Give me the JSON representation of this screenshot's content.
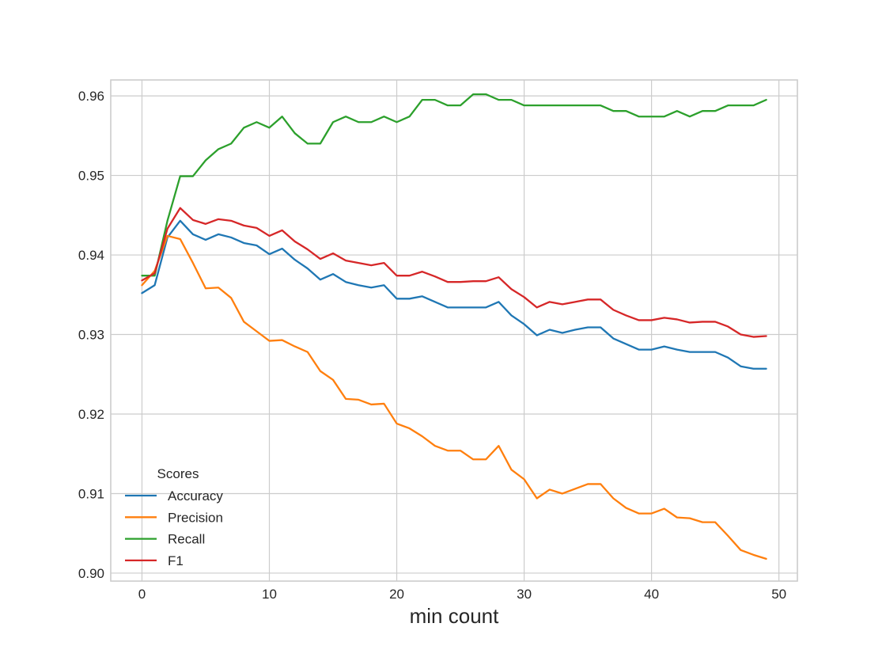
{
  "chart_data": {
    "type": "line",
    "title": "",
    "xlabel": "min count",
    "ylabel": "",
    "xlim": [
      -2.45,
      51.45
    ],
    "ylim": [
      0.899,
      0.962
    ],
    "xticks": [
      0,
      10,
      20,
      30,
      40,
      50
    ],
    "xtick_labels": [
      "0",
      "10",
      "20",
      "30",
      "40",
      "50"
    ],
    "yticks": [
      0.9,
      0.91,
      0.92,
      0.93,
      0.94,
      0.95,
      0.96
    ],
    "ytick_labels": [
      "0.90",
      "0.91",
      "0.92",
      "0.93",
      "0.94",
      "0.95",
      "0.96"
    ],
    "grid": true,
    "legend": {
      "title": "Scores",
      "placement": "lower-left"
    },
    "x": [
      0,
      1,
      2,
      3,
      4,
      5,
      6,
      7,
      8,
      9,
      10,
      11,
      12,
      13,
      14,
      15,
      16,
      17,
      18,
      19,
      20,
      21,
      22,
      23,
      24,
      25,
      26,
      27,
      28,
      29,
      30,
      31,
      32,
      33,
      34,
      35,
      36,
      37,
      38,
      39,
      40,
      41,
      42,
      43,
      44,
      45,
      46,
      47,
      48,
      49
    ],
    "series": [
      {
        "name": "Accuracy",
        "color": "#1f77b4",
        "values": [
          0.9352,
          0.9362,
          0.9422,
          0.9443,
          0.9426,
          0.9419,
          0.9426,
          0.9422,
          0.9415,
          0.9412,
          0.9401,
          0.9408,
          0.9394,
          0.9383,
          0.9369,
          0.9376,
          0.9366,
          0.9362,
          0.9359,
          0.9362,
          0.9345,
          0.9345,
          0.9348,
          0.9341,
          0.9334,
          0.9334,
          0.9334,
          0.9334,
          0.9341,
          0.9324,
          0.9313,
          0.9299,
          0.9306,
          0.9302,
          0.9306,
          0.9309,
          0.9309,
          0.9295,
          0.9288,
          0.9281,
          0.9281,
          0.9285,
          0.9281,
          0.9278,
          0.9278,
          0.9278,
          0.9271,
          0.926,
          0.9257,
          0.9257
        ]
      },
      {
        "name": "Precision",
        "color": "#ff7f0e",
        "values": [
          0.9362,
          0.938,
          0.9424,
          0.942,
          0.939,
          0.9358,
          0.9359,
          0.9346,
          0.9316,
          0.9304,
          0.9292,
          0.9293,
          0.9285,
          0.9278,
          0.9254,
          0.9243,
          0.9219,
          0.9218,
          0.9212,
          0.9213,
          0.9188,
          0.9182,
          0.9172,
          0.916,
          0.9154,
          0.9154,
          0.9143,
          0.9143,
          0.916,
          0.913,
          0.9118,
          0.9094,
          0.9105,
          0.91,
          0.9106,
          0.9112,
          0.9112,
          0.9094,
          0.9082,
          0.9075,
          0.9075,
          0.9081,
          0.907,
          0.9069,
          0.9064,
          0.9064,
          0.9047,
          0.9029,
          0.9023,
          0.9018
        ]
      },
      {
        "name": "Recall",
        "color": "#2ca02c",
        "values": [
          0.9374,
          0.9374,
          0.9443,
          0.9499,
          0.9499,
          0.9519,
          0.9533,
          0.954,
          0.956,
          0.9567,
          0.956,
          0.9574,
          0.9553,
          0.954,
          0.954,
          0.9567,
          0.9574,
          0.9567,
          0.9567,
          0.9574,
          0.9567,
          0.9574,
          0.9595,
          0.9595,
          0.9588,
          0.9588,
          0.9602,
          0.9602,
          0.9595,
          0.9595,
          0.9588,
          0.9588,
          0.9588,
          0.9588,
          0.9588,
          0.9588,
          0.9588,
          0.9581,
          0.9581,
          0.9574,
          0.9574,
          0.9574,
          0.9581,
          0.9574,
          0.9581,
          0.9581,
          0.9588,
          0.9588,
          0.9588,
          0.9595
        ]
      },
      {
        "name": "F1",
        "color": "#d62728",
        "values": [
          0.9368,
          0.9377,
          0.9433,
          0.9459,
          0.9444,
          0.9439,
          0.9445,
          0.9443,
          0.9437,
          0.9434,
          0.9424,
          0.9431,
          0.9417,
          0.9407,
          0.9395,
          0.9402,
          0.9393,
          0.939,
          0.9387,
          0.939,
          0.9374,
          0.9374,
          0.9379,
          0.9373,
          0.9366,
          0.9366,
          0.9367,
          0.9367,
          0.9372,
          0.9357,
          0.9347,
          0.9334,
          0.9341,
          0.9338,
          0.9341,
          0.9344,
          0.9344,
          0.9331,
          0.9324,
          0.9318,
          0.9318,
          0.9321,
          0.9319,
          0.9315,
          0.9316,
          0.9316,
          0.931,
          0.93,
          0.9297,
          0.9298
        ]
      }
    ]
  }
}
